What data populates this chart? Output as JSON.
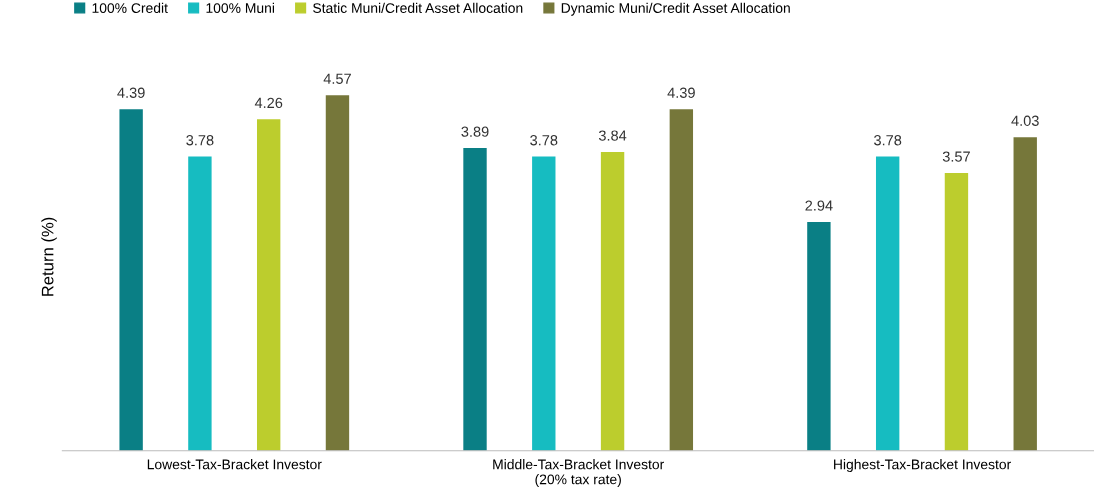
{
  "chart_data": {
    "type": "bar",
    "ylabel": "Return (%)",
    "categories": [
      "Lowest-Tax-Bracket Investor",
      "Middle-Tax-Bracket Investor\n(20% tax rate)",
      "Highest-Tax-Bracket Investor"
    ],
    "series": [
      {
        "name": "100% Credit",
        "color": "#0a7f85",
        "values": [
          4.39,
          3.89,
          2.94
        ]
      },
      {
        "name": "100% Muni",
        "color": "#16bcc1",
        "values": [
          3.78,
          3.78,
          3.78
        ]
      },
      {
        "name": "Static Muni/Credit Asset Allocation",
        "color": "#bccd2d",
        "values": [
          4.26,
          3.84,
          3.57
        ]
      },
      {
        "name": "Dynamic Muni/Credit Asset Allocation",
        "color": "#76773a",
        "values": [
          4.57,
          4.39,
          4.03
        ]
      }
    ],
    "data_labels": true,
    "legend": "top left",
    "grid": false
  }
}
